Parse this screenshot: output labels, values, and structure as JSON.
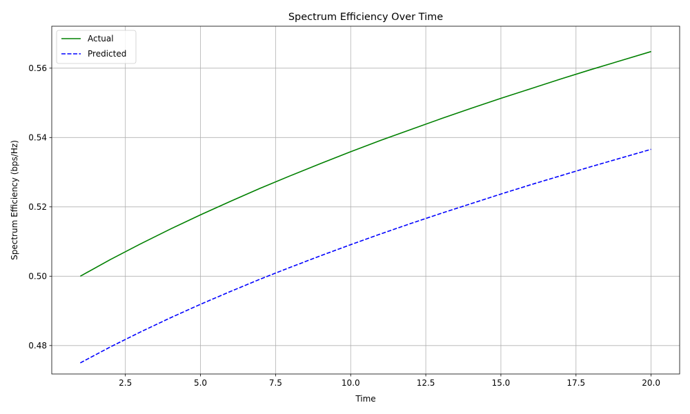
{
  "chart_data": {
    "type": "line",
    "title": "Spectrum Efficiency Over Time",
    "xlabel": "Time",
    "ylabel": "Spectrum Efficiency (bps/Hz)",
    "xlim": [
      0.05,
      20.95
    ],
    "ylim": [
      0.4718,
      0.5721
    ],
    "xticks": [
      2.5,
      5.0,
      7.5,
      10.0,
      12.5,
      15.0,
      17.5,
      20.0
    ],
    "xtick_labels": [
      "2.5",
      "5.0",
      "7.5",
      "10.0",
      "12.5",
      "15.0",
      "17.5",
      "20.0"
    ],
    "yticks": [
      0.48,
      0.5,
      0.52,
      0.54,
      0.56
    ],
    "ytick_labels": [
      "0.48",
      "0.50",
      "0.52",
      "0.54",
      "0.56"
    ],
    "grid": true,
    "legend_position": "top-left",
    "series": [
      {
        "name": "Actual",
        "color": "#008000",
        "style": "solid",
        "x": [
          1,
          2,
          3,
          4,
          5,
          6,
          7,
          8,
          9,
          10,
          11,
          12,
          13,
          14,
          15,
          16,
          17,
          18,
          19,
          20
        ],
        "values": [
          0.5,
          0.5048,
          0.5093,
          0.5136,
          0.5177,
          0.5216,
          0.5254,
          0.529,
          0.5325,
          0.5359,
          0.5392,
          0.5423,
          0.5454,
          0.5484,
          0.5513,
          0.5541,
          0.5569,
          0.5596,
          0.5622,
          0.5648
        ]
      },
      {
        "name": "Predicted",
        "color": "#0000ff",
        "style": "dashed",
        "x": [
          1,
          2,
          3,
          4,
          5,
          6,
          7,
          8,
          9,
          10,
          11,
          12,
          13,
          14,
          15,
          16,
          17,
          18,
          19,
          20
        ],
        "values": [
          0.475,
          0.4796,
          0.4839,
          0.488,
          0.4919,
          0.4956,
          0.4992,
          0.5026,
          0.5059,
          0.5091,
          0.5122,
          0.5152,
          0.5181,
          0.5209,
          0.5237,
          0.5264,
          0.529,
          0.5316,
          0.5341,
          0.5366
        ]
      }
    ]
  }
}
